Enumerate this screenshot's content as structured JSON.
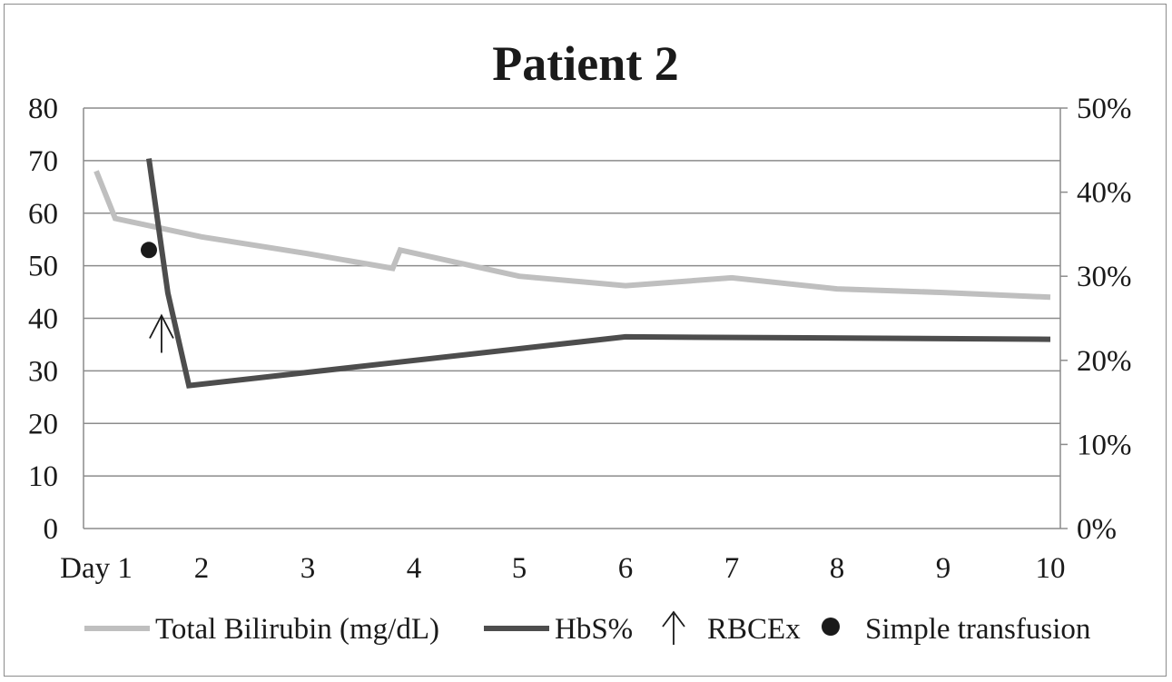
{
  "chart_data": {
    "type": "line",
    "title": "Patient 2",
    "xlabel": "",
    "ylabel": "",
    "y2label": "",
    "x_ticks": [
      "Day 1",
      "2",
      "3",
      "4",
      "5",
      "6",
      "7",
      "8",
      "9",
      "10"
    ],
    "xlim": [
      1,
      10
    ],
    "ylim": [
      0,
      80
    ],
    "y_ticks": [
      "0",
      "10",
      "20",
      "30",
      "40",
      "50",
      "60",
      "70",
      "80"
    ],
    "y2lim": [
      0,
      50
    ],
    "y2_ticks": [
      "0%",
      "10%",
      "20%",
      "30%",
      "40%",
      "50%"
    ],
    "grid": true,
    "legend_position": "bottom",
    "series": [
      {
        "name": "Total Bilirubin (mg/dL)",
        "axis": "left",
        "color": "#bfbfbf",
        "x": [
          1,
          1.18,
          2,
          3,
          3.8,
          3.87,
          5,
          6,
          7,
          8,
          9,
          10
        ],
        "y": [
          68,
          59,
          55.5,
          52.3,
          49.5,
          53,
          48,
          46.2,
          47.7,
          45.6,
          44.9,
          44
        ]
      },
      {
        "name": "HbS%",
        "axis": "right",
        "color": "#4d4d4d",
        "x": [
          1.5,
          1.68,
          1.88,
          6,
          10
        ],
        "y": [
          44,
          28,
          17,
          22.8,
          22.5
        ]
      }
    ],
    "markers": [
      {
        "name": "RBCEx",
        "symbol": "arrow-up",
        "x": 1.62,
        "y": 40
      },
      {
        "name": "Simple transfusion",
        "symbol": "dot",
        "x": 1.5,
        "y": 53
      }
    ]
  }
}
